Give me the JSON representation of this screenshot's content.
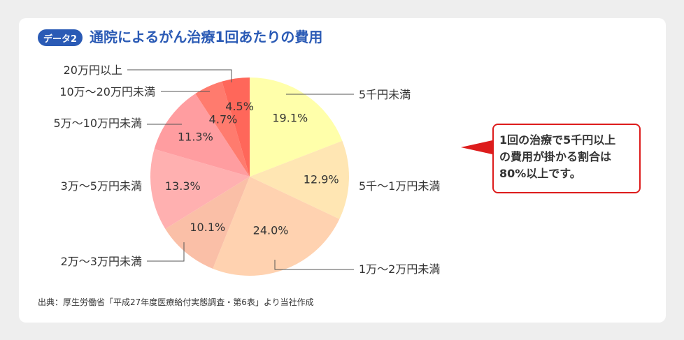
{
  "header": {
    "badge_label": "データ2",
    "title": "通院によるがん治療1回あたりの費用"
  },
  "chart_data": {
    "type": "pie",
    "title": "通院によるがん治療1回あたりの費用",
    "start_angle_deg": 0,
    "direction": "clockwise",
    "slices": [
      {
        "category": "5千円未満",
        "value": 19.1,
        "value_label": "19.1%",
        "color": "#ffffaa"
      },
      {
        "category": "5千〜1万円未満",
        "value": 12.9,
        "value_label": "12.9%",
        "color": "#ffe6b3"
      },
      {
        "category": "1万〜2万円未満",
        "value": 24.0,
        "value_label": "24.0%",
        "color": "#ffd2b0"
      },
      {
        "category": "2万〜3万円未満",
        "value": 10.1,
        "value_label": "10.1%",
        "color": "#fabfa7"
      },
      {
        "category": "3万〜5万円未満",
        "value": 13.3,
        "value_label": "13.3%",
        "color": "#ffb0b0"
      },
      {
        "category": "5万〜10万円未満",
        "value": 11.3,
        "value_label": "11.3%",
        "color": "#ff9da0"
      },
      {
        "category": "10万〜20万円未満",
        "value": 4.7,
        "value_label": "4.7%",
        "color": "#ff7b6e"
      },
      {
        "category": "20万円以上",
        "value": 4.5,
        "value_label": "4.5%",
        "color": "#ff675a"
      }
    ]
  },
  "callout": {
    "lines": [
      "1回の治療で5千円以上",
      "の費用が掛かる割合は",
      "80%以上です。"
    ]
  },
  "source": "出典：厚生労働省「平成27年度医療給付実態調査・第6表」より当社作成",
  "colors": {
    "accent_blue": "#2a5ab5",
    "callout_red": "#dd1c1c",
    "leader_line": "#555555"
  }
}
